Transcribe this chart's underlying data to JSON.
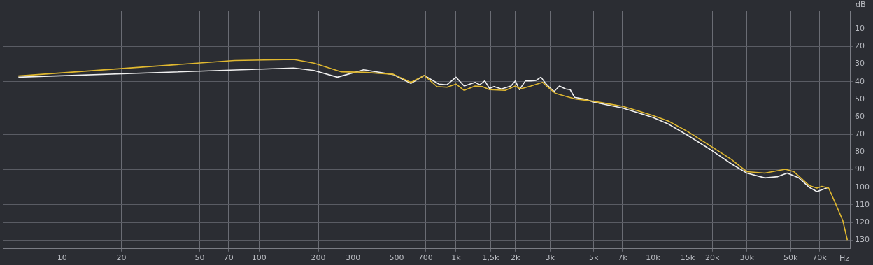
{
  "chart_data": {
    "type": "line",
    "xlabel": "Hz",
    "ylabel": "dB",
    "log": "x",
    "grid": true,
    "marker": "none",
    "line_style": "solid",
    "xlim": [
      5,
      100000
    ],
    "ylim": [
      135,
      0
    ],
    "xticks": [
      10,
      20,
      50,
      70,
      100,
      200,
      300,
      500,
      700,
      {
        "value": 1000,
        "label": "1k"
      },
      {
        "value": 1500,
        "label": "1,5k"
      },
      {
        "value": 2000,
        "label": "2k"
      },
      {
        "value": 3000,
        "label": "3k"
      },
      {
        "value": 5000,
        "label": "5k"
      },
      {
        "value": 7000,
        "label": "7k"
      },
      {
        "value": 10000,
        "label": "10k"
      },
      {
        "value": 15000,
        "label": "15k"
      },
      {
        "value": 20000,
        "label": "20k"
      },
      {
        "value": 30000,
        "label": "30k"
      },
      {
        "value": 50000,
        "label": "50k"
      },
      {
        "value": 70000,
        "label": "70k"
      }
    ],
    "yticks": [
      10,
      20,
      30,
      40,
      50,
      60,
      70,
      80,
      90,
      100,
      110,
      120,
      130
    ],
    "series": [
      {
        "color": "#f0f0f0",
        "x": [
          6,
          150,
          190,
          250,
          340,
          480,
          590,
          690,
          820,
          900,
          1000,
          1100,
          1250,
          1320,
          1400,
          1480,
          1560,
          1700,
          1900,
          2000,
          2100,
          2250,
          2400,
          2550,
          2700,
          2850,
          3000,
          3150,
          3350,
          3600,
          3800,
          4000,
          4500,
          5000,
          5900,
          7000,
          8500,
          10000,
          12000,
          15000,
          20000,
          25000,
          30000,
          37000,
          43000,
          48000,
          55000,
          62000,
          68000,
          78000
        ],
        "values": [
          37.5,
          32.3,
          33.7,
          37.5,
          33.3,
          36,
          41,
          36.5,
          41.4,
          41.8,
          37.5,
          42.5,
          40.4,
          41.8,
          39.6,
          43.9,
          42.8,
          44.2,
          42.5,
          39.6,
          44.6,
          39.6,
          39.6,
          39.3,
          37.5,
          41,
          43.5,
          45.6,
          42.5,
          44.2,
          44.6,
          49,
          50,
          51.6,
          53.3,
          55,
          57.9,
          60.4,
          64.2,
          70.5,
          79.3,
          86.7,
          92,
          94.7,
          94,
          92,
          94.7,
          100,
          102.5,
          100
        ]
      },
      {
        "color": "#e0b830",
        "x": [
          6,
          75,
          150,
          190,
          260,
          340,
          480,
          590,
          690,
          800,
          900,
          1000,
          1100,
          1250,
          1360,
          1480,
          1780,
          2000,
          2120,
          2400,
          2750,
          2900,
          3200,
          3600,
          4000,
          5000,
          5900,
          7000,
          8500,
          10000,
          12000,
          15000,
          20000,
          25000,
          30000,
          37000,
          47000,
          52000,
          62000,
          68000,
          72000,
          78000,
          85000,
          92000,
          97000
        ],
        "values": [
          36.8,
          28,
          27.4,
          29.5,
          34.4,
          34.7,
          35.8,
          40.4,
          36.5,
          42.8,
          43.2,
          41.4,
          45,
          42.5,
          42.8,
          44.6,
          45,
          42.5,
          44.2,
          42.5,
          40.4,
          42.8,
          46.7,
          48.4,
          49.8,
          51.2,
          52.6,
          54,
          56.8,
          59.3,
          62.5,
          68.4,
          77.2,
          84.2,
          91.2,
          92,
          89.8,
          91.2,
          99,
          100.5,
          99.5,
          100.5,
          110,
          119,
          130
        ]
      }
    ]
  }
}
